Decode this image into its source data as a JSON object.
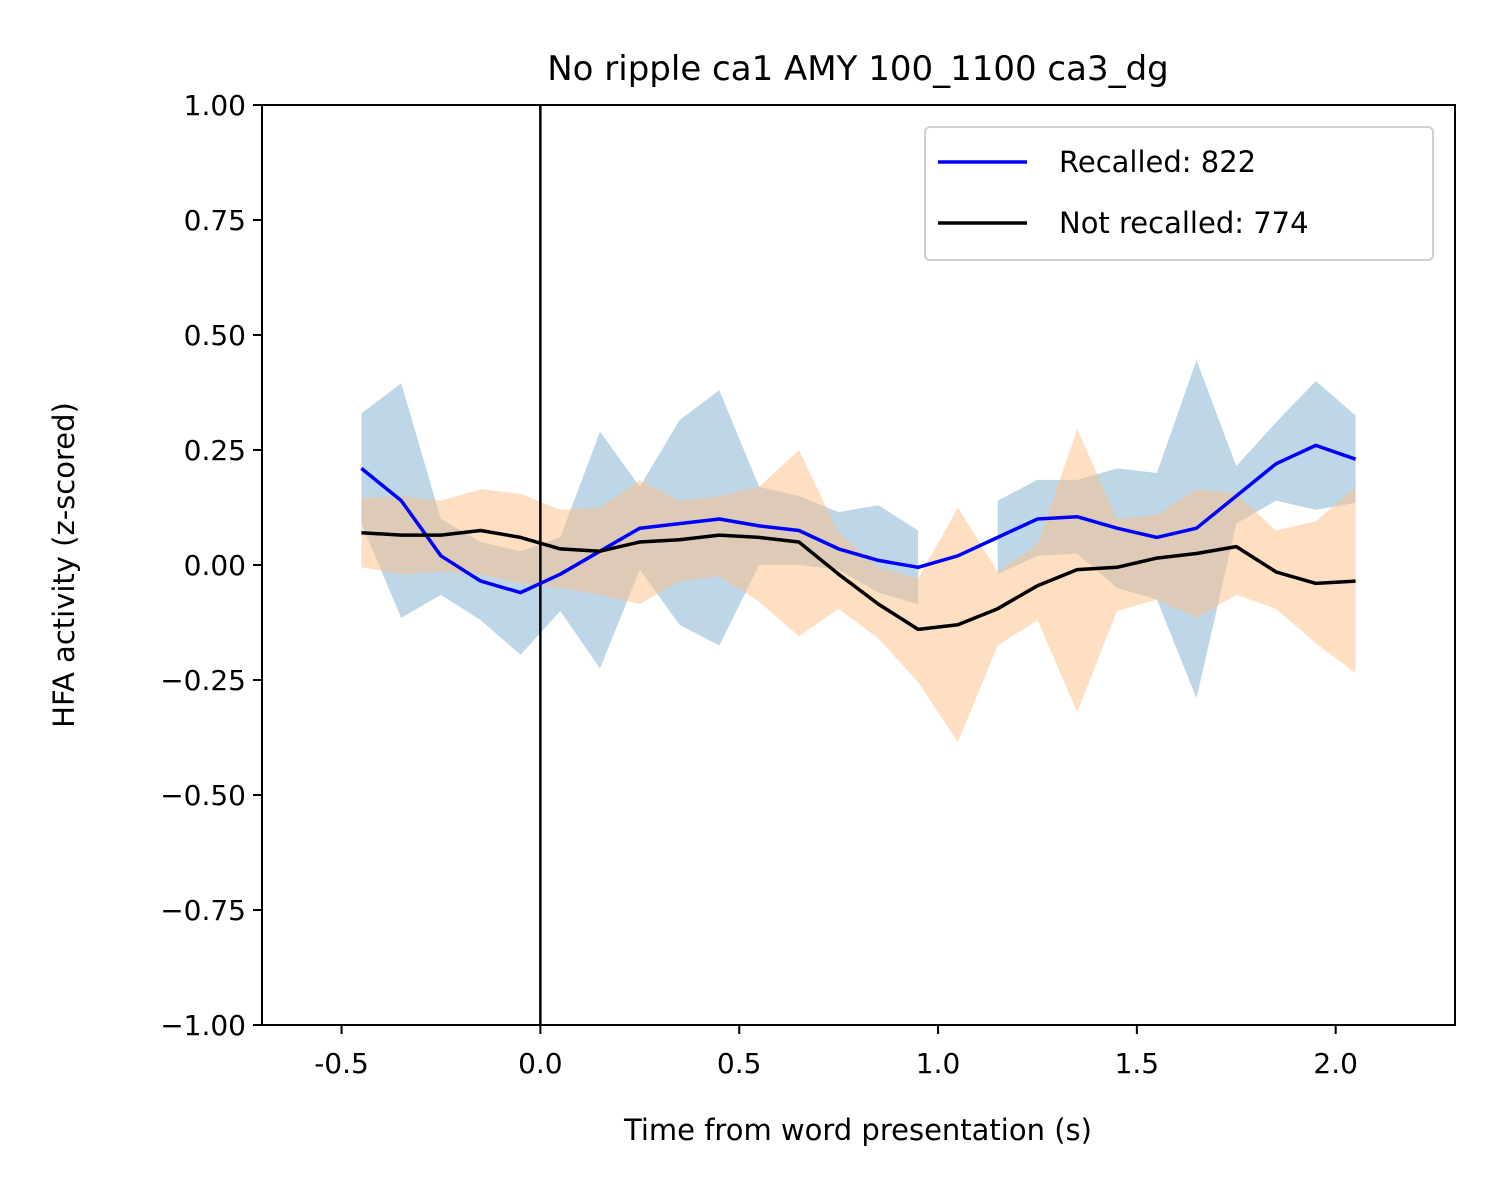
{
  "chart_data": {
    "type": "line",
    "title": "No ripple ca1 AMY 100_1100 ca3_dg",
    "xlabel": "Time from word presentation (s)",
    "ylabel": "HFA activity (z-scored)",
    "xlim": [
      -0.7,
      2.3
    ],
    "ylim": [
      -1.0,
      1.0
    ],
    "xticks": [
      -0.5,
      0.0,
      0.5,
      1.0,
      1.5,
      2.0
    ],
    "xtick_labels": [
      "-0.5",
      "0.0",
      "0.5",
      "1.0",
      "1.5",
      "2.0"
    ],
    "yticks": [
      1.0,
      0.75,
      0.5,
      0.25,
      0.0,
      -0.25,
      -0.5,
      -0.75,
      -1.0
    ],
    "ytick_labels": [
      "1.00",
      "0.75",
      "0.50",
      "0.25",
      "0.00",
      "−0.25",
      "−0.50",
      "−0.75",
      "−1.00"
    ],
    "vline_x": 0.0,
    "grid": false,
    "legend_position": "top-right",
    "x": [
      -0.45,
      -0.35,
      -0.25,
      -0.15,
      -0.05,
      0.05,
      0.15,
      0.25,
      0.35,
      0.45,
      0.55,
      0.65,
      0.75,
      0.85,
      0.95,
      1.05,
      1.15,
      1.25,
      1.35,
      1.45,
      1.55,
      1.65,
      1.75,
      1.85,
      1.95,
      2.05
    ],
    "series": [
      {
        "name": "Recalled: 822",
        "color": "#0000ff",
        "band_color": "#7bafd4",
        "values": [
          0.21,
          0.14,
          0.02,
          -0.035,
          -0.06,
          -0.02,
          0.03,
          0.08,
          0.09,
          0.1,
          0.085,
          0.075,
          0.035,
          0.01,
          -0.005,
          0.02,
          0.06,
          0.1,
          0.105,
          0.08,
          0.06,
          0.08,
          0.15,
          0.22,
          0.26,
          0.23
        ],
        "upper": [
          0.33,
          0.395,
          0.1,
          0.05,
          0.03,
          0.06,
          0.29,
          0.17,
          0.315,
          0.38,
          0.17,
          0.15,
          0.115,
          0.13,
          0.075,
          null,
          0.14,
          0.185,
          0.185,
          0.21,
          0.2,
          0.445,
          0.215,
          0.31,
          0.4,
          0.325
        ],
        "lower": [
          0.09,
          -0.115,
          -0.065,
          -0.12,
          -0.195,
          -0.1,
          -0.225,
          -0.01,
          -0.13,
          -0.175,
          0.0,
          0.0,
          -0.01,
          -0.06,
          -0.085,
          null,
          -0.02,
          0.02,
          0.025,
          -0.05,
          -0.075,
          -0.29,
          0.09,
          0.14,
          0.12,
          0.135
        ]
      },
      {
        "name": "Not recalled: 774",
        "color": "#000000",
        "band_color": "#ffbf86",
        "values": [
          0.07,
          0.065,
          0.065,
          0.075,
          0.06,
          0.035,
          0.03,
          0.05,
          0.055,
          0.065,
          0.06,
          0.05,
          -0.02,
          -0.085,
          -0.14,
          -0.13,
          -0.095,
          -0.045,
          -0.01,
          -0.005,
          0.015,
          0.025,
          0.04,
          -0.015,
          -0.04,
          -0.035
        ],
        "upper": [
          0.145,
          0.15,
          0.14,
          0.165,
          0.155,
          0.12,
          0.125,
          0.185,
          0.14,
          0.15,
          0.17,
          0.25,
          0.07,
          -0.005,
          -0.03,
          0.125,
          -0.015,
          0.045,
          0.295,
          0.1,
          0.11,
          0.165,
          0.155,
          0.075,
          0.095,
          0.17
        ],
        "lower": [
          -0.005,
          -0.02,
          -0.015,
          -0.02,
          -0.04,
          -0.05,
          -0.065,
          -0.085,
          -0.035,
          -0.025,
          -0.08,
          -0.155,
          -0.095,
          -0.16,
          -0.255,
          -0.385,
          -0.175,
          -0.12,
          -0.32,
          -0.1,
          -0.075,
          -0.115,
          -0.065,
          -0.095,
          -0.17,
          -0.235
        ]
      }
    ]
  }
}
